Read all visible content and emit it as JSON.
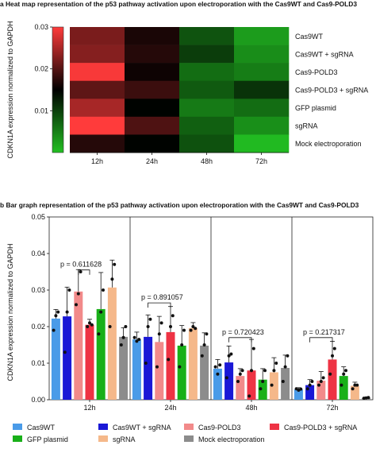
{
  "panel_a": {
    "title": "a Heat map representation of the p53 pathway activation upon electroporation with the Cas9WT and Cas9-POLD3",
    "ylabel": "CDKN1A  expression normalized to GAPDH"
  },
  "panel_b": {
    "title": "b Bar graph representation of the p53 pathway activation upon electroporation with the Cas9WT and Cas9-POLD3",
    "ylabel": "CDKN1A  expression normalized to GAPDH"
  },
  "chart_data": [
    {
      "type": "heatmap",
      "title": "a Heat map representation of the p53 pathway activation upon electroporation with the Cas9WT and Cas9-POLD3",
      "ylabel": "CDKN1A  expression normalized to GAPDH",
      "colorbar": {
        "min": 0,
        "max": 0.03,
        "ticks": [
          0.01,
          0.02,
          0.03
        ],
        "high_color": "#ff3b3b",
        "mid_color": "#000000",
        "low_color": "#22c022"
      },
      "columns": [
        "12h",
        "24h",
        "48h",
        "72h"
      ],
      "rows": [
        "Cas9WT",
        "Cas9WT + sgRNA",
        "Cas9-POLD3",
        "Cas9-POLD3 + sgRNA",
        "GFP plasmid",
        "sgRNA",
        "Mock electroporation"
      ],
      "values": [
        [
          0.0222,
          0.0165,
          0.0085,
          0.0028
        ],
        [
          0.0228,
          0.0172,
          0.0102,
          0.004
        ],
        [
          0.0296,
          0.0158,
          0.0065,
          0.0052
        ],
        [
          0.0205,
          0.0185,
          0.008,
          0.011
        ],
        [
          0.0248,
          0.0148,
          0.0055,
          0.0065
        ],
        [
          0.0307,
          0.0196,
          0.0075,
          0.0038
        ],
        [
          0.0172,
          0.0148,
          0.0087,
          0.0005
        ]
      ]
    },
    {
      "type": "bar",
      "ylabel": "CDKN1A  expression normalized to GAPDH",
      "ylim": [
        0,
        0.05
      ],
      "yticks": [
        "0.00",
        "0.01",
        "0.02",
        "0.03",
        "0.04",
        "0.05"
      ],
      "categories": [
        "12h",
        "24h",
        "48h",
        "72h"
      ],
      "series": [
        {
          "name": "Cas9WT",
          "color": "#4a9be8",
          "values": [
            0.0222,
            0.0165,
            0.0085,
            0.0028
          ],
          "errors": [
            0.0025,
            0.002,
            0.0025,
            0.0005
          ],
          "points": [
            [
              0.019,
              0.023,
              0.024
            ],
            [
              0.017,
              0.016,
              0.0165
            ],
            [
              0.009,
              0.007,
              0.0095
            ],
            [
              0.003,
              0.0026,
              0.0029
            ]
          ]
        },
        {
          "name": "Cas9WT + sgRNA",
          "color": "#1a18d6",
          "values": [
            0.0228,
            0.0172,
            0.0102,
            0.004
          ],
          "errors": [
            0.008,
            0.006,
            0.0045,
            0.0015
          ],
          "points": [
            [
              0.013,
              0.024,
              0.03
            ],
            [
              0.01,
              0.02,
              0.022
            ],
            [
              0.006,
              0.012,
              0.0125
            ],
            [
              0.003,
              0.004,
              0.005
            ]
          ]
        },
        {
          "name": "Cas9-POLD3",
          "color": "#f28a8a",
          "values": [
            0.0296,
            0.0158,
            0.0065,
            0.0052
          ],
          "errors": [
            0.006,
            0.007,
            0.002,
            0.0025
          ],
          "points": [
            [
              0.026,
              0.029,
              0.035
            ],
            [
              0.009,
              0.018,
              0.021
            ],
            [
              0.005,
              0.007,
              0.008
            ],
            [
              0.004,
              0.005,
              0.006
            ]
          ]
        },
        {
          "name": "Cas9-POLD3 + sgRNA",
          "color": "#ee3344",
          "values": [
            0.0205,
            0.0185,
            0.008,
            0.011
          ],
          "errors": [
            0.0015,
            0.007,
            0.0085,
            0.005
          ],
          "points": [
            [
              0.02,
              0.021,
              0.0205
            ],
            [
              0.011,
              0.02,
              0.023
            ],
            [
              0.001,
              0.008,
              0.014
            ],
            [
              0.007,
              0.012,
              0.014
            ]
          ]
        },
        {
          "name": "GFP plasmid",
          "color": "#19b019",
          "values": [
            0.0248,
            0.0148,
            0.0055,
            0.0065
          ],
          "errors": [
            0.01,
            0.0055,
            0.003,
            0.0025
          ],
          "points": [
            [
              0.018,
              0.024,
              0.03
            ],
            [
              0.009,
              0.015,
              0.019
            ],
            [
              0.003,
              0.005,
              0.008
            ],
            [
              0.004,
              0.007,
              0.008
            ]
          ]
        },
        {
          "name": "sgRNA",
          "color": "#f5b88a",
          "values": [
            0.0307,
            0.0196,
            0.0075,
            0.0038
          ],
          "errors": [
            0.0075,
            0.0015,
            0.004,
            0.001
          ],
          "points": [
            [
              0.02,
              0.033,
              0.037
            ],
            [
              0.019,
              0.02,
              0.0195
            ],
            [
              0.004,
              0.008,
              0.01
            ],
            [
              0.003,
              0.004,
              0.004
            ]
          ]
        },
        {
          "name": "Mock electroporation",
          "color": "#8c8c8c",
          "values": [
            0.0172,
            0.0148,
            0.0087,
            0.0005
          ],
          "errors": [
            0.0025,
            0.0035,
            0.0035,
            0.0002
          ],
          "points": [
            [
              0.015,
              0.017,
              0.02
            ],
            [
              0.012,
              0.015,
              0.018
            ],
            [
              0.005,
              0.009,
              0.012
            ],
            [
              0.0004,
              0.0005,
              0.0006
            ]
          ]
        }
      ],
      "annotations": [
        {
          "category": "12h",
          "text": "p = 0.611628",
          "from_series": 2,
          "to_series": 3,
          "y": 0.0355
        },
        {
          "category": "24h",
          "text": "p = 0.891057",
          "from_series": 1,
          "to_series": 3,
          "y": 0.0265
        },
        {
          "category": "48h",
          "text": "p = 0.720423",
          "from_series": 1,
          "to_series": 3,
          "y": 0.017
        },
        {
          "category": "72h",
          "text": "p = 0.217317",
          "from_series": 1,
          "to_series": 3,
          "y": 0.017
        }
      ],
      "legend_position": "bottom"
    }
  ]
}
